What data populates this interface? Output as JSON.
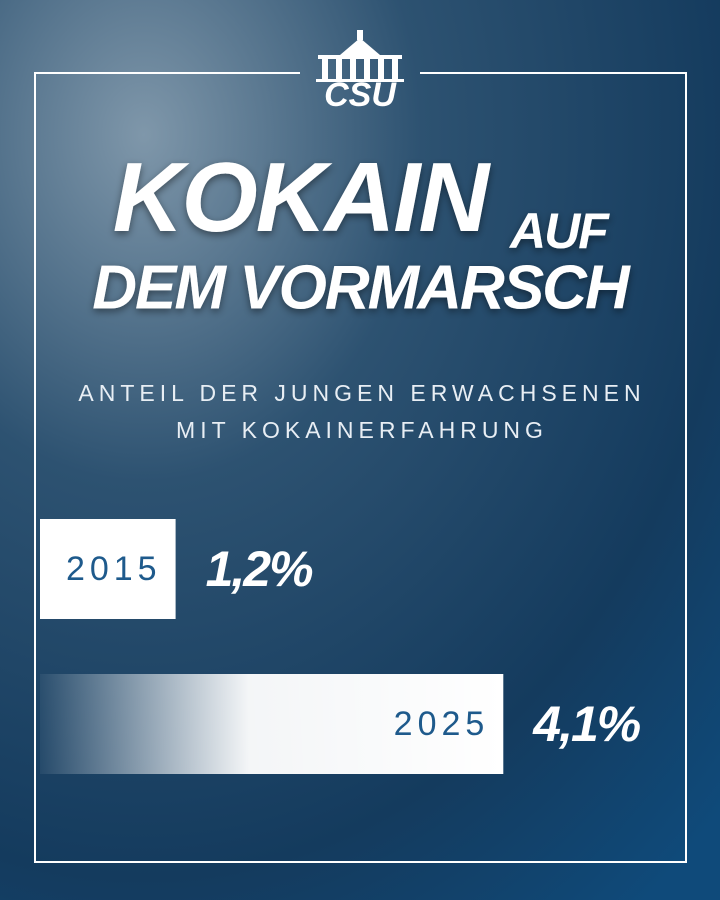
{
  "logo": "CSU",
  "chart_data": {
    "type": "bar",
    "title_lines": [
      "KOKAIN",
      "AUF",
      "DEM VORMARSCH"
    ],
    "subtitle_lines": [
      "ANTEIL DER JUNGEN ERWACHSENEN",
      "MIT KOKAINERFAHRUNG"
    ],
    "categories": [
      "2015",
      "2025"
    ],
    "values": [
      1.2,
      4.1
    ],
    "value_labels": [
      "1,2%",
      "4,1%"
    ],
    "color": "#ffffff",
    "label_color": "#1e5a8c",
    "highlight_color": "#3fe3f7"
  }
}
